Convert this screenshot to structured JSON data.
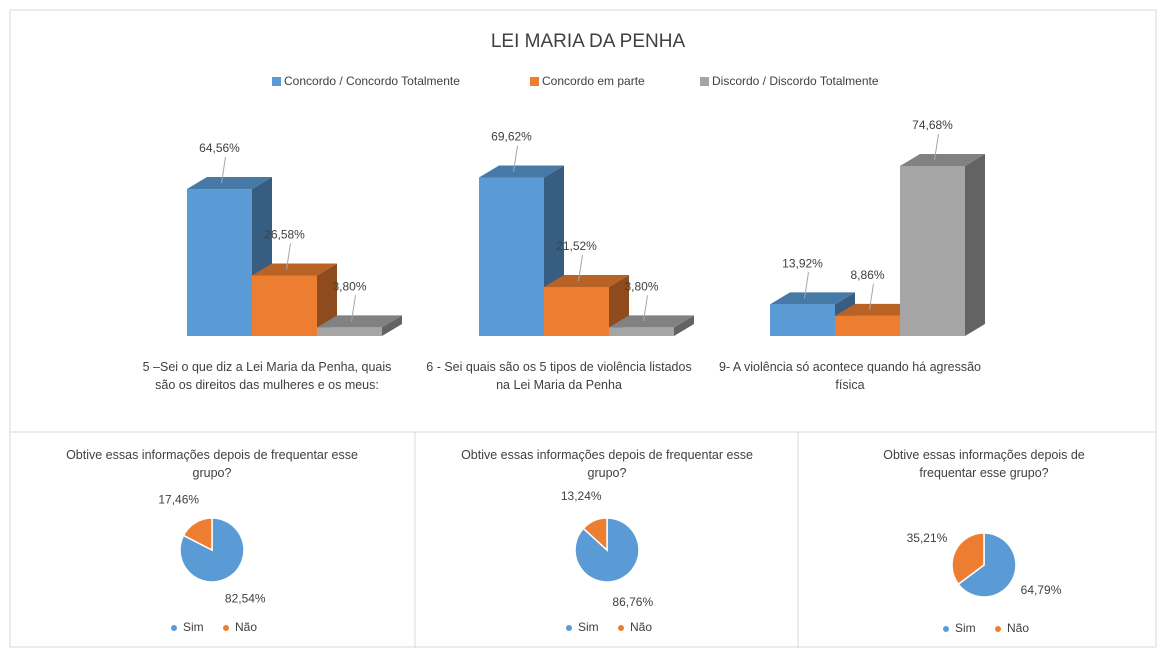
{
  "chart_data": [
    {
      "type": "bar",
      "title": "LEI MARIA DA PENHA",
      "categories": [
        "5 –Sei o que diz a Lei Maria da Penha, quais são os direitos das mulheres e os meus:",
        "6 - Sei quais são os 5 tipos de violência listados na Lei Maria da Penha",
        "9- A violência só acontece quando há agressão física"
      ],
      "series": [
        {
          "name": "Concordo / Concordo Totalmente",
          "color": "#5b9bd5",
          "values": [
            64.56,
            69.62,
            13.92
          ],
          "value_labels": [
            "64,56%",
            "69,62%",
            "13,92%"
          ]
        },
        {
          "name": "Concordo em parte",
          "color": "#ed7d31",
          "values": [
            26.58,
            21.52,
            8.86
          ],
          "value_labels": [
            "26,58%",
            "21,52%",
            "8,86%"
          ]
        },
        {
          "name": "Discordo / Discordo Totalmente",
          "color": "#a5a5a5",
          "values": [
            3.8,
            3.8,
            74.68
          ],
          "value_labels": [
            "3,80%",
            "3,80%",
            "74,68%"
          ]
        }
      ]
    },
    {
      "type": "pie",
      "title": "Obtive essas informações depois de frequentar esse grupo?",
      "categories": [
        "Sim",
        "Não"
      ],
      "colors": [
        "#5b9bd5",
        "#ed7d31"
      ],
      "values": [
        82.54,
        17.46
      ],
      "value_labels": [
        "82,54%",
        "17,46%"
      ]
    },
    {
      "type": "pie",
      "title": "Obtive essas informações depois de frequentar esse grupo?",
      "categories": [
        "Sim",
        "Não"
      ],
      "colors": [
        "#5b9bd5",
        "#ed7d31"
      ],
      "values": [
        86.76,
        13.24
      ],
      "value_labels": [
        "86,76%",
        "13,24%"
      ]
    },
    {
      "type": "pie",
      "title": "Obtive essas informações depois de frequentar esse grupo?",
      "categories": [
        "Sim",
        "Não"
      ],
      "colors": [
        "#5b9bd5",
        "#ed7d31"
      ],
      "values": [
        64.79,
        35.21
      ],
      "value_labels": [
        "64,79%",
        "35,21%"
      ]
    }
  ]
}
